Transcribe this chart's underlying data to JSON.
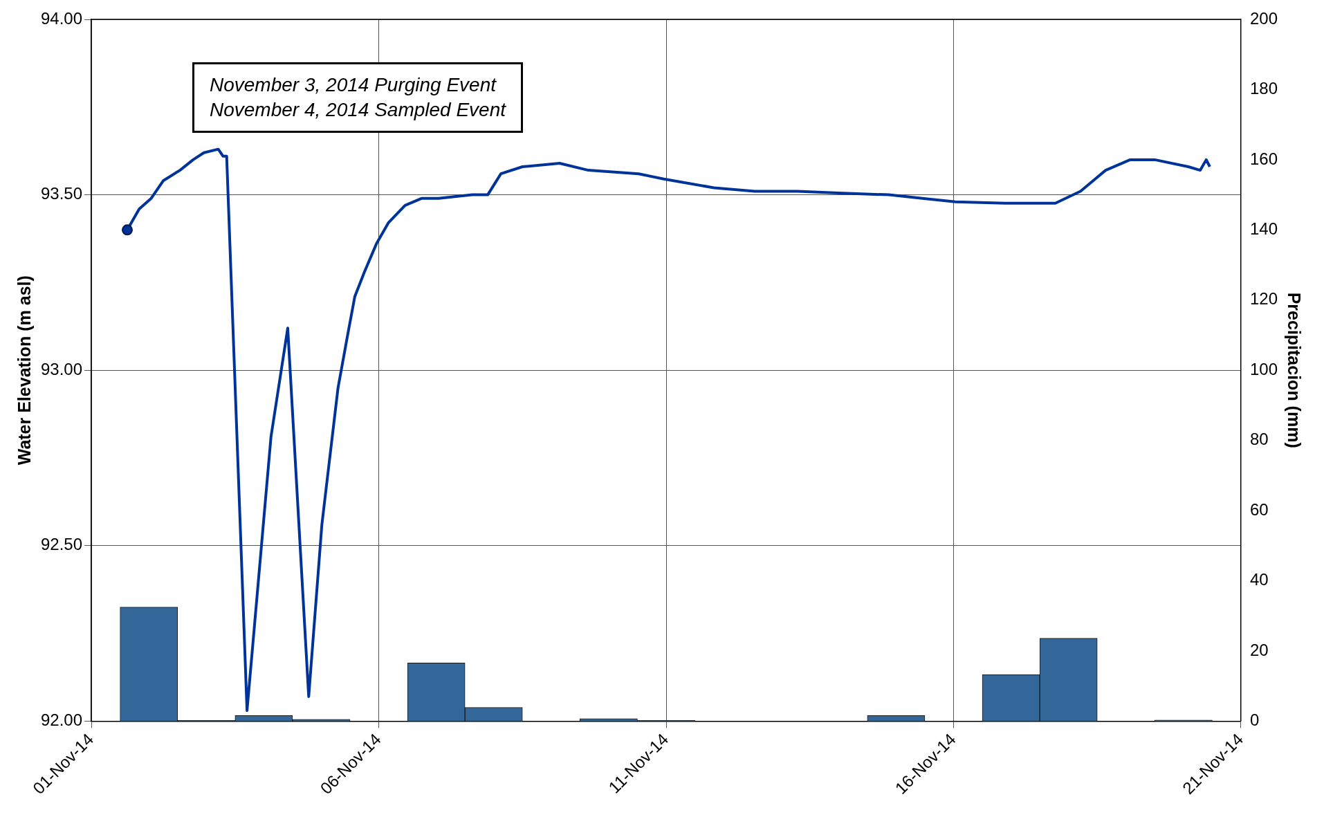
{
  "chart_data": {
    "type": "line",
    "xlabel": null,
    "ylabel": "Water Elevation (m asl)",
    "y2label": "Precipitacion (mm)",
    "annotations": [
      "November 3, 2014 Purging Event\nNovember 4, 2014 Sampled Event"
    ],
    "xlim": [
      "2014-11-01",
      "2014-11-21"
    ],
    "xticks": [
      {
        "value": "2014-11-01",
        "label": "01-Nov-14"
      },
      {
        "value": "2014-11-06",
        "label": "06-Nov-14"
      },
      {
        "value": "2014-11-11",
        "label": "11-Nov-14"
      },
      {
        "value": "2014-11-16",
        "label": "16-Nov-14"
      },
      {
        "value": "2014-11-21",
        "label": "21-Nov-14"
      }
    ],
    "ylim": [
      92,
      94
    ],
    "yticks": [
      {
        "value": 92,
        "label": "92.00"
      },
      {
        "value": 92.5,
        "label": "92.50"
      },
      {
        "value": 93,
        "label": "93.00"
      },
      {
        "value": 93.5,
        "label": "93.50"
      },
      {
        "value": 94,
        "label": "94.00"
      }
    ],
    "y2lim": [
      0,
      200
    ],
    "y2ticks": [
      0,
      20,
      40,
      60,
      80,
      100,
      120,
      140,
      160,
      180,
      200
    ],
    "grid": true,
    "legend": false,
    "line_style": "solid",
    "marker": "none",
    "series": [
      {
        "type": "bar",
        "axis": "y2",
        "color": "#336699",
        "x": [
          "2014-11-02",
          "2014-11-03",
          "2014-11-04",
          "2014-11-05",
          "2014-11-06",
          "2014-11-07",
          "2014-11-08",
          "2014-11-09",
          "2014-11-10",
          "2014-11-11",
          "2014-11-12",
          "2014-11-13",
          "2014-11-14",
          "2014-11-15",
          "2014-11-16",
          "2014-11-17",
          "2014-11-18",
          "2014-11-19",
          "2014-11-20"
        ],
        "values": [
          32.5,
          0.2,
          1.6,
          0.5,
          0,
          16.6,
          3.9,
          0,
          0.7,
          0.2,
          0,
          0,
          0,
          1.6,
          0,
          13.2,
          23.6,
          0,
          0.3
        ]
      },
      {
        "color": "#003399",
        "x": [
          "2014-11-01T15:00",
          "2014-11-01T20:00",
          "2014-11-02T01:00",
          "2014-11-02T06:00",
          "2014-11-02T13:00",
          "2014-11-02T18:30",
          "2014-11-02T23:00",
          "2014-11-03T05:00",
          "2014-11-03T07:00",
          "2014-11-03T08:30",
          "2014-11-03T17:00",
          "2014-11-04T03:00",
          "2014-11-04T10:00",
          "2014-11-04T18:45",
          "2014-11-05T00:15",
          "2014-11-05T07:00",
          "2014-11-05T11:00",
          "2014-11-05T14:00",
          "2014-11-05T18:00",
          "2014-11-05T23:00",
          "2014-11-06T04:00",
          "2014-11-06T11:00",
          "2014-11-06T18:00",
          "2014-11-07T01:00",
          "2014-11-07T15:00",
          "2014-11-07T21:30",
          "2014-11-08T03:00",
          "2014-11-08T12:00",
          "2014-11-09T03:30",
          "2014-11-09T15:30",
          "2014-11-10T12:30",
          "2014-11-10T23:00",
          "2014-11-11T20:00",
          "2014-11-12T13:00",
          "2014-11-13T06:45",
          "2014-11-14T00:00",
          "2014-11-14T21:00",
          "2014-11-15T11:00",
          "2014-11-16T00:45",
          "2014-11-16T21:30",
          "2014-11-17T18:30",
          "2014-11-18T05:00",
          "2014-11-18T15:30",
          "2014-11-19T01:45",
          "2014-11-19T12:00",
          "2014-11-20T02:00",
          "2014-11-20T07:00",
          "2014-11-20T09:30",
          "2014-11-20T11:00"
        ],
        "values": [
          93.4,
          93.46,
          93.49,
          93.54,
          93.57,
          93.6,
          93.62,
          93.63,
          93.61,
          93.61,
          92.03,
          92.81,
          93.12,
          92.07,
          92.56,
          92.95,
          93.1,
          93.21,
          93.28,
          93.36,
          93.42,
          93.47,
          93.49,
          93.49,
          93.5,
          93.5,
          93.56,
          93.58,
          93.59,
          93.57,
          93.56,
          93.545,
          93.52,
          93.51,
          93.51,
          93.505,
          93.5,
          93.49,
          93.48,
          93.476,
          93.476,
          93.51,
          93.57,
          93.6,
          93.6,
          93.58,
          93.57,
          93.6,
          93.58
        ]
      },
      {
        "type": "scatter",
        "marker": "circle",
        "color": "#003399",
        "x": [
          "2014-11-01T15:00"
        ],
        "values": [
          93.4
        ]
      }
    ]
  }
}
